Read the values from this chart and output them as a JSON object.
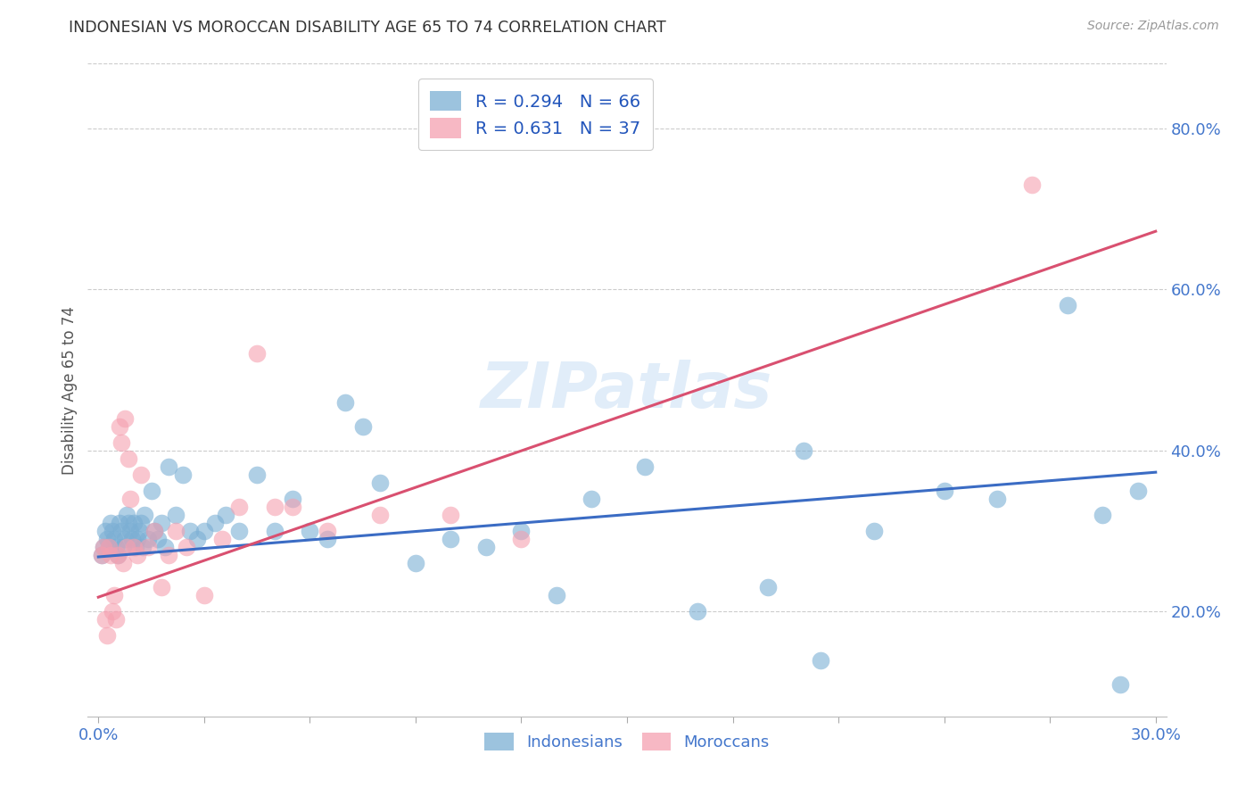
{
  "title": "INDONESIAN VS MOROCCAN DISABILITY AGE 65 TO 74 CORRELATION CHART",
  "source": "Source: ZipAtlas.com",
  "ylabel": "Disability Age 65 to 74",
  "ylabel_right_ticks": [
    "20.0%",
    "40.0%",
    "60.0%",
    "80.0%"
  ],
  "ylabel_right_vals": [
    0.2,
    0.4,
    0.6,
    0.8
  ],
  "xlim": [
    -0.3,
    30.3
  ],
  "ylim": [
    0.07,
    0.88
  ],
  "legend1_R": "0.294",
  "legend1_N": "66",
  "legend2_R": "0.631",
  "legend2_N": "37",
  "blue_color": "#7BAFD4",
  "pink_color": "#F5A0B0",
  "blue_line_color": "#3B6CC4",
  "pink_line_color": "#D95070",
  "legend_text_color": "#2255BB",
  "tick_label_color": "#4477CC",
  "title_color": "#333333",
  "source_color": "#999999",
  "ylabel_color": "#555555",
  "grid_color": "#CCCCCC",
  "background_color": "#FFFFFF",
  "watermark_color": "#AACCEE",
  "indonesian_x": [
    0.1,
    0.15,
    0.2,
    0.25,
    0.3,
    0.35,
    0.4,
    0.45,
    0.5,
    0.55,
    0.6,
    0.65,
    0.7,
    0.75,
    0.8,
    0.85,
    0.9,
    0.95,
    1.0,
    1.05,
    1.1,
    1.15,
    1.2,
    1.25,
    1.3,
    1.4,
    1.5,
    1.6,
    1.7,
    1.8,
    1.9,
    2.0,
    2.2,
    2.4,
    2.6,
    2.8,
    3.0,
    3.3,
    3.6,
    4.0,
    4.5,
    5.0,
    5.5,
    6.0,
    6.5,
    7.0,
    7.5,
    8.0,
    9.0,
    10.0,
    11.0,
    12.0,
    13.0,
    14.0,
    15.5,
    17.0,
    19.0,
    20.5,
    22.0,
    24.0,
    25.5,
    27.5,
    28.5,
    29.0,
    29.5,
    20.0
  ],
  "indonesian_y": [
    0.27,
    0.28,
    0.3,
    0.29,
    0.28,
    0.31,
    0.3,
    0.29,
    0.28,
    0.27,
    0.31,
    0.3,
    0.28,
    0.29,
    0.32,
    0.31,
    0.3,
    0.29,
    0.31,
    0.28,
    0.29,
    0.3,
    0.31,
    0.28,
    0.32,
    0.29,
    0.35,
    0.3,
    0.29,
    0.31,
    0.28,
    0.38,
    0.32,
    0.37,
    0.3,
    0.29,
    0.3,
    0.31,
    0.32,
    0.3,
    0.37,
    0.3,
    0.34,
    0.3,
    0.29,
    0.46,
    0.43,
    0.36,
    0.26,
    0.29,
    0.28,
    0.3,
    0.22,
    0.34,
    0.38,
    0.2,
    0.23,
    0.14,
    0.3,
    0.35,
    0.34,
    0.58,
    0.32,
    0.11,
    0.35,
    0.4
  ],
  "moroccan_x": [
    0.1,
    0.15,
    0.2,
    0.25,
    0.3,
    0.35,
    0.4,
    0.45,
    0.5,
    0.55,
    0.6,
    0.65,
    0.7,
    0.75,
    0.8,
    0.85,
    0.9,
    1.0,
    1.1,
    1.2,
    1.4,
    1.6,
    1.8,
    2.0,
    2.2,
    2.5,
    3.0,
    3.5,
    4.0,
    4.5,
    5.0,
    5.5,
    6.5,
    8.0,
    10.0,
    12.0,
    26.5
  ],
  "moroccan_y": [
    0.27,
    0.28,
    0.19,
    0.17,
    0.28,
    0.27,
    0.2,
    0.22,
    0.19,
    0.27,
    0.43,
    0.41,
    0.26,
    0.44,
    0.28,
    0.39,
    0.34,
    0.28,
    0.27,
    0.37,
    0.28,
    0.3,
    0.23,
    0.27,
    0.3,
    0.28,
    0.22,
    0.29,
    0.33,
    0.52,
    0.33,
    0.33,
    0.3,
    0.32,
    0.32,
    0.29,
    0.73
  ],
  "blue_trend_x0": 0.0,
  "blue_trend_y0": 0.268,
  "blue_trend_x1": 30.0,
  "blue_trend_y1": 0.373,
  "pink_trend_x0": 0.0,
  "pink_trend_y0": 0.218,
  "pink_trend_x1": 30.0,
  "pink_trend_y1": 0.672
}
